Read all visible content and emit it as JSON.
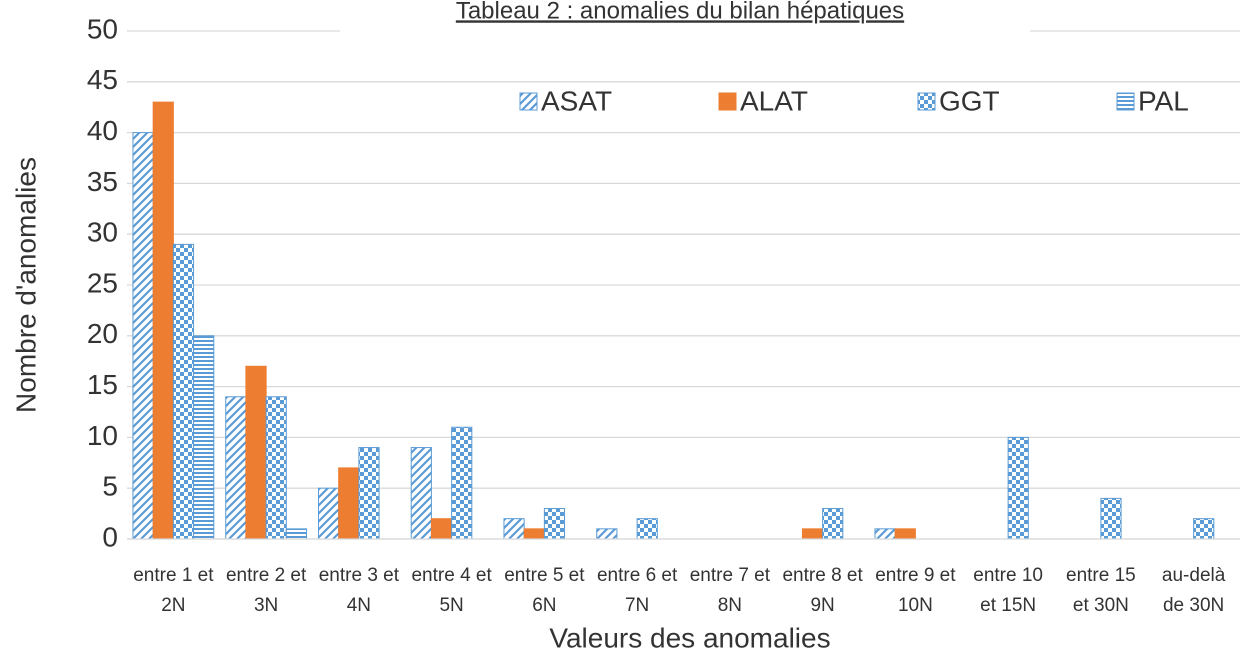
{
  "chart_data": {
    "type": "bar",
    "title": "Tableau 2 : anomalies du bilan hépatiques",
    "x_label": "Valeurs des anomalies",
    "y_label": "Nombre d'anomalies",
    "categories": [
      "entre 1 et 2N",
      "entre 2 et 3N",
      "entre 3 et 4N",
      "entre 4 et 5N",
      "entre 5 et 6N",
      "entre 6 et 7N",
      "entre 7 et 8N",
      "entre 8 et 9N",
      "entre 9 et 10N",
      "entre 10 et 15N",
      "entre 15 et 30N",
      "au-delà de 30N"
    ],
    "series": [
      {
        "name": "ASAT",
        "color": "#5b9bd5",
        "pattern": "diagonal",
        "values": [
          40,
          14,
          5,
          9,
          2,
          1,
          0,
          0,
          1,
          0,
          0,
          0
        ]
      },
      {
        "name": "ALAT",
        "color": "#ed7d31",
        "pattern": "solid",
        "values": [
          43,
          17,
          7,
          2,
          1,
          0,
          0,
          1,
          1,
          0,
          0,
          0
        ]
      },
      {
        "name": "GGT",
        "color": "#5b9bd5",
        "pattern": "checker",
        "values": [
          29,
          14,
          9,
          11,
          3,
          2,
          0,
          3,
          0,
          10,
          4,
          2
        ]
      },
      {
        "name": "PAL",
        "color": "#5b9bd5",
        "pattern": "horizontal",
        "values": [
          20,
          1,
          0,
          0,
          0,
          0,
          0,
          0,
          0,
          0,
          0,
          0
        ]
      }
    ],
    "ylim": [
      0,
      50
    ],
    "yticks": [
      0,
      5,
      10,
      15,
      20,
      25,
      30,
      35,
      40,
      45,
      50
    ],
    "grid": true,
    "legend": "top-right"
  }
}
